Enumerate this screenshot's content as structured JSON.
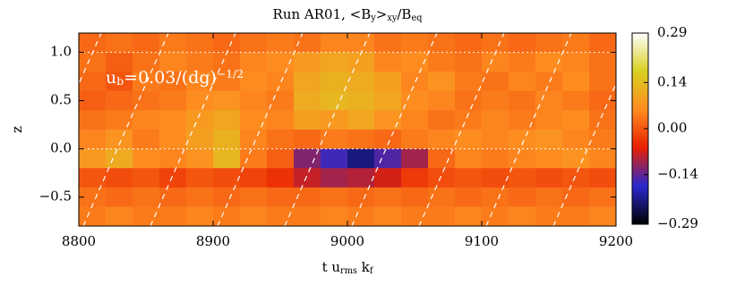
{
  "chart_data": {
    "type": "heatmap",
    "title": [
      {
        "text": "Run AR01, <B"
      },
      {
        "text": "y",
        "sub": true
      },
      {
        "text": ">"
      },
      {
        "text": "xy",
        "sub": true
      },
      {
        "text": "/B"
      },
      {
        "text": "eq",
        "sub": true
      }
    ],
    "xlabel": [
      {
        "text": "t u"
      },
      {
        "text": "rms",
        "sub": true
      },
      {
        "text": " k"
      },
      {
        "text": "f",
        "sub": true
      }
    ],
    "ylabel": [
      {
        "text": "z"
      }
    ],
    "annotation": [
      {
        "text": "u"
      },
      {
        "text": "b",
        "sub": true
      },
      {
        "text": "=0.03/(dg)"
      },
      {
        "text": "−1/2",
        "sup": true
      }
    ],
    "x": [
      8810,
      8830,
      8850,
      8870,
      8890,
      8910,
      8930,
      8950,
      8970,
      8990,
      9010,
      9030,
      9050,
      9070,
      9090,
      9110,
      9130,
      9150,
      9170,
      9190
    ],
    "y": [
      1.1,
      0.9,
      0.7,
      0.5,
      0.3,
      0.1,
      -0.1,
      -0.3,
      -0.5,
      -0.7
    ],
    "values": [
      [
        0.02,
        0.03,
        0.02,
        0.04,
        0.03,
        0.02,
        0.03,
        0.04,
        0.03,
        0.05,
        0.05,
        0.03,
        0.04,
        0.03,
        0.02,
        0.03,
        0.02,
        0.03,
        0.04,
        0.02
      ],
      [
        0.03,
        0.01,
        0.03,
        0.05,
        0.04,
        0.03,
        0.05,
        0.06,
        0.08,
        0.1,
        0.09,
        0.05,
        0.06,
        0.04,
        0.03,
        0.05,
        0.04,
        0.06,
        0.05,
        0.03
      ],
      [
        0.02,
        0.0,
        0.04,
        0.03,
        0.05,
        0.04,
        0.06,
        0.05,
        0.1,
        0.12,
        0.11,
        0.09,
        0.05,
        0.07,
        0.04,
        0.03,
        0.05,
        0.04,
        0.06,
        0.03
      ],
      [
        0.01,
        0.02,
        0.03,
        0.04,
        0.06,
        0.07,
        0.05,
        0.04,
        0.11,
        0.13,
        0.12,
        0.1,
        0.06,
        0.05,
        0.03,
        0.04,
        0.03,
        0.05,
        0.04,
        0.02
      ],
      [
        0.03,
        0.04,
        0.05,
        0.06,
        0.08,
        0.1,
        0.06,
        0.05,
        0.09,
        0.08,
        0.1,
        0.07,
        0.05,
        0.03,
        0.04,
        0.05,
        0.04,
        0.05,
        0.06,
        0.03
      ],
      [
        0.05,
        0.07,
        0.04,
        0.06,
        0.09,
        0.12,
        0.05,
        0.03,
        0.02,
        0.04,
        0.03,
        0.02,
        0.04,
        0.05,
        0.06,
        0.05,
        0.06,
        0.07,
        0.05,
        0.04
      ],
      [
        0.08,
        0.11,
        0.06,
        0.05,
        0.07,
        0.13,
        0.04,
        0.01,
        -0.12,
        -0.16,
        -0.22,
        -0.15,
        -0.1,
        0.02,
        0.05,
        0.04,
        0.05,
        0.06,
        0.07,
        0.05
      ],
      [
        0.0,
        -0.01,
        0.0,
        -0.02,
        0.0,
        -0.01,
        -0.02,
        -0.04,
        -0.08,
        -0.1,
        -0.09,
        -0.07,
        -0.03,
        -0.01,
        0.0,
        -0.01,
        0.0,
        -0.01,
        0.0,
        -0.01
      ],
      [
        0.03,
        0.02,
        0.03,
        0.02,
        0.03,
        0.02,
        0.03,
        0.02,
        0.02,
        0.03,
        0.02,
        0.03,
        0.02,
        0.03,
        0.02,
        0.03,
        0.02,
        0.03,
        0.02,
        0.03
      ],
      [
        0.04,
        0.05,
        0.04,
        0.04,
        0.05,
        0.04,
        0.05,
        0.04,
        0.04,
        0.05,
        0.04,
        0.05,
        0.04,
        0.04,
        0.05,
        0.04,
        0.05,
        0.04,
        0.04,
        0.05
      ]
    ],
    "xlim": [
      8800,
      9200
    ],
    "xticks": [
      8800,
      8900,
      9000,
      9100,
      9200
    ],
    "ylim": [
      -0.8,
      1.2
    ],
    "yticks": [
      {
        "value": -0.5,
        "label": "−0.5"
      },
      {
        "value": 0,
        "label": "0.0"
      },
      0.5,
      {
        "value": 1,
        "label": "1.0"
      }
    ],
    "hlines": [
      1,
      0
    ],
    "clim": [
      -0.29,
      0.29
    ],
    "cticks": [
      {
        "value": -0.29,
        "label": "−0.29"
      },
      {
        "value": -0.14,
        "label": "−0.14"
      },
      {
        "value": 0,
        "label": "0.00"
      },
      0.14,
      0.29
    ],
    "colors": [
      "#000000",
      "#2828d0",
      "#e82000",
      "#ff8c20",
      "#d8d020",
      "#ffffff"
    ]
  }
}
